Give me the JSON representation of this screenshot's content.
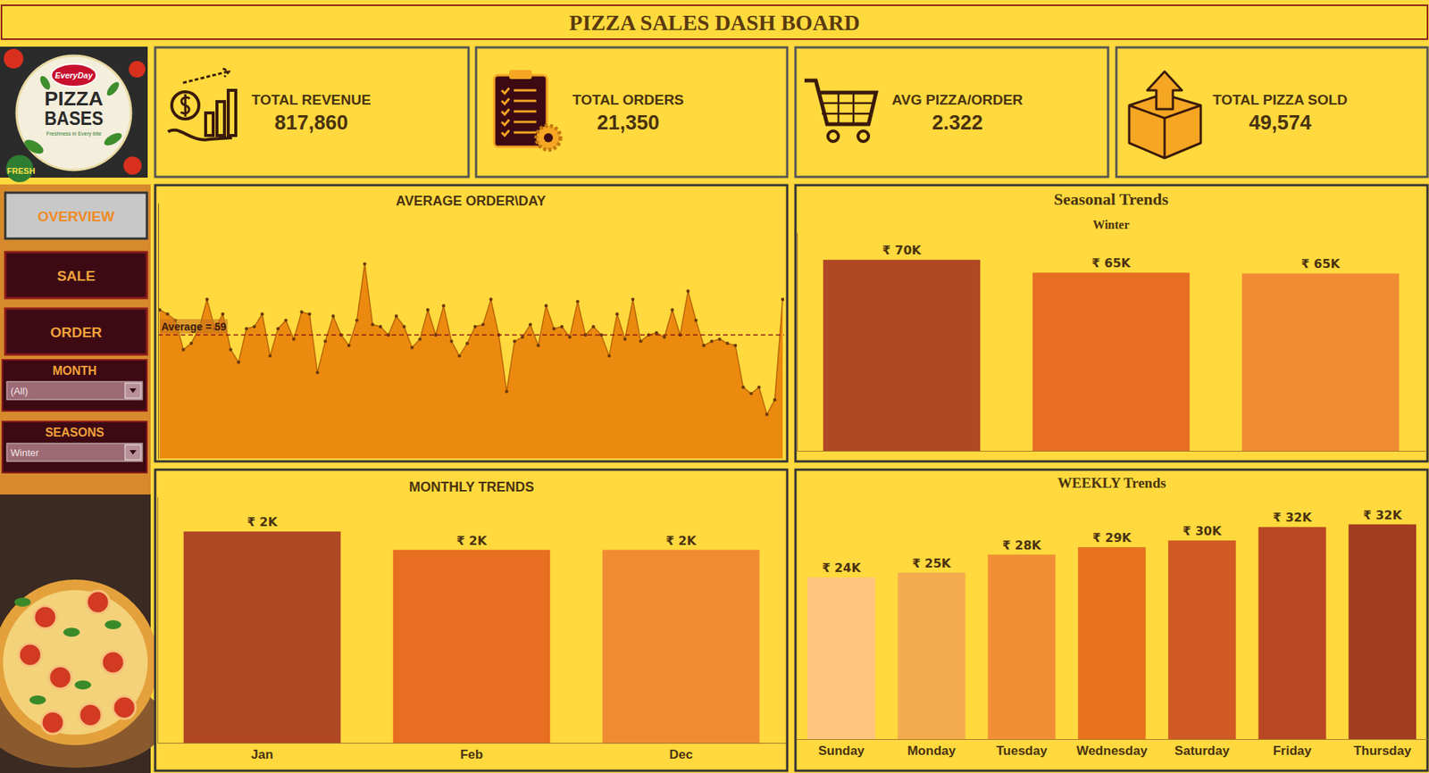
{
  "dashboard": {
    "title": "PIZZA SALES DASH BOARD",
    "logo": {
      "brand": "EveryDay",
      "name": [
        "PIZZA",
        "BASES"
      ],
      "tagline": "Freshness in Every bite",
      "badge": "FRESH"
    },
    "kpis": [
      {
        "label": "TOTAL REVENUE",
        "value": "817,860"
      },
      {
        "label": "TOTAL ORDERS",
        "value": "21,350"
      },
      {
        "label": "AVG PIZZA/ORDER",
        "value": "2.322"
      },
      {
        "label": "TOTAL PIZZA SOLD",
        "value": "49,574"
      }
    ],
    "nav": [
      "OVERVIEW",
      "SALE",
      "ORDER"
    ],
    "filters": [
      {
        "label": "MONTH",
        "value": "(All)"
      },
      {
        "label": "SEASONS",
        "value": "Winter"
      }
    ]
  },
  "chart_data": [
    {
      "type": "area",
      "title": "AVERAGE ORDER\\DAY",
      "values": [
        71,
        69,
        66,
        52,
        55,
        62,
        76,
        62,
        69,
        52,
        46,
        62,
        63,
        69,
        49,
        62,
        66,
        57,
        70,
        69,
        41,
        56,
        68,
        59,
        54,
        66,
        93,
        64,
        63,
        59,
        68,
        63,
        53,
        57,
        71,
        59,
        73,
        56,
        49,
        55,
        63,
        64,
        76,
        59,
        32,
        56,
        58,
        64,
        54,
        73,
        62,
        63,
        58,
        75,
        59,
        63,
        59,
        49,
        69,
        57,
        76,
        56,
        59,
        60,
        58,
        71,
        59,
        80,
        66,
        54,
        56,
        57,
        55,
        54,
        34,
        31,
        34,
        21,
        28,
        76
      ],
      "color": "#EB8A0E",
      "marker": "circle",
      "ylim": [
        0,
        122
      ],
      "tick_labels": false,
      "annotations": [
        {
          "text": "Average = 59",
          "value": 59
        }
      ]
    },
    {
      "type": "bar",
      "title": "Seasonal Trends",
      "subtitle": "Winter",
      "categories": [
        null,
        null,
        null
      ],
      "values": [
        70000,
        65300,
        65000
      ],
      "value_labels": [
        "₹ 70K",
        "₹ 65K",
        "₹ 65K"
      ],
      "data_labels": true,
      "colors": [
        "#B04725",
        "#E86E22",
        "#F08B33"
      ],
      "ylim": [
        0,
        80000
      ],
      "tick_labels": false
    },
    {
      "type": "bar",
      "title": "MONTHLY TRENDS",
      "categories": [
        "Jan",
        "Feb",
        "Dec"
      ],
      "values": [
        2190,
        2000,
        2000
      ],
      "value_labels": [
        "₹ 2K",
        "₹ 2K",
        "₹ 2K"
      ],
      "data_labels": true,
      "colors": [
        "#B04725",
        "#E86E22",
        "#F08B33"
      ],
      "ylim": [
        0,
        2550
      ],
      "tick_labels": "x"
    },
    {
      "type": "bar",
      "title": "WEEKLY Trends",
      "categories": [
        "Sunday",
        "Monday",
        "Tuesday",
        "Wednesday",
        "Saturday",
        "Friday",
        "Thursday"
      ],
      "values": [
        24100,
        24800,
        27500,
        28600,
        29600,
        31600,
        32000
      ],
      "value_labels": [
        "₹ 24K",
        "₹ 25K",
        "₹ 28K",
        "₹ 29K",
        "₹ 30K",
        "₹ 32K",
        "₹ 32K"
      ],
      "data_labels": true,
      "colors": [
        "#FFC47D",
        "#F4AB4E",
        "#F28F35",
        "#E8731F",
        "#D15A24",
        "#B94822",
        "#A33D22"
      ],
      "ylim": [
        0,
        36000
      ],
      "tick_labels": "x"
    }
  ]
}
